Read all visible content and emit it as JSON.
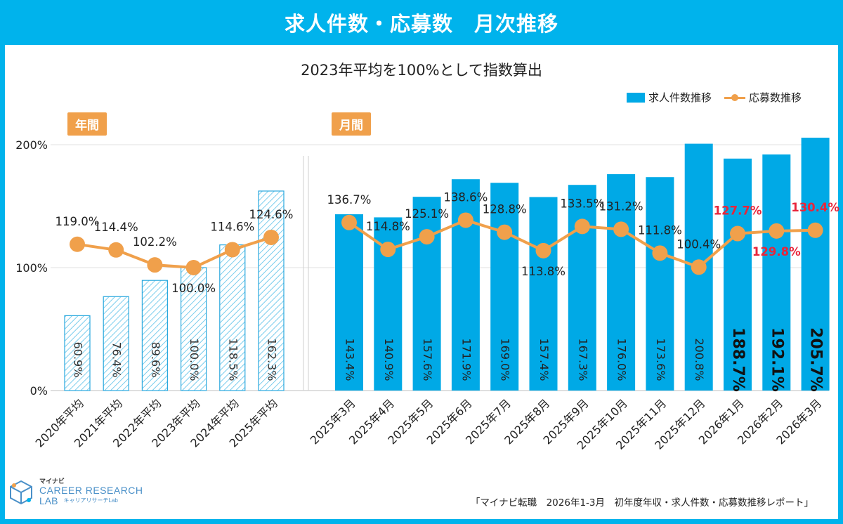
{
  "header": {
    "title": "求人件数・応募数　月次推移"
  },
  "subtitle": "2023年平均を100%として指数算出",
  "legend": {
    "bar_label": "求人件数推移",
    "line_label": "応募数推移"
  },
  "sections": {
    "annual": "年間",
    "monthly": "月間"
  },
  "colors": {
    "bar": "#00a9e6",
    "line": "#f0a04b",
    "highlight_label": "#e8253a",
    "header": "#00b3ec"
  },
  "chart_data": {
    "type": "bar+line",
    "yaxis": {
      "ticks": [
        "0%",
        "100%",
        "200%"
      ],
      "tick_values": [
        0,
        100,
        200
      ],
      "ylim": [
        0,
        200
      ]
    },
    "annual": {
      "categories": [
        "2020年平均",
        "2021年平均",
        "2022年平均",
        "2023年平均",
        "2024年平均",
        "2025年平均"
      ],
      "bar_values": [
        60.9,
        76.4,
        89.6,
        100.0,
        118.5,
        162.3
      ],
      "bar_labels": [
        "60.9%",
        "76.4%",
        "89.6%",
        "100.0%",
        "118.5%",
        "162.3%"
      ],
      "line_values": [
        119.0,
        114.4,
        102.2,
        100.0,
        114.6,
        124.6
      ],
      "line_labels": [
        "119.0%",
        "114.4%",
        "102.2%",
        "100.0%",
        "114.6%",
        "124.6%"
      ]
    },
    "monthly": {
      "categories": [
        "2025年3月",
        "2025年4月",
        "2025年5月",
        "2025年6月",
        "2025年7月",
        "2025年8月",
        "2025年9月",
        "2025年10月",
        "2025年11月",
        "2025年12月",
        "2026年1月",
        "2026年2月",
        "2026年3月"
      ],
      "bar_values": [
        143.4,
        140.9,
        157.6,
        171.9,
        169.0,
        157.4,
        167.3,
        176.0,
        173.6,
        200.8,
        188.7,
        192.1,
        205.7
      ],
      "bar_labels": [
        "143.4%",
        "140.9%",
        "157.6%",
        "171.9%",
        "169.0%",
        "157.4%",
        "167.3%",
        "176.0%",
        "173.6%",
        "200.8%",
        "188.7%",
        "192.1%",
        "205.7%"
      ],
      "bar_label_emphasis": [
        false,
        false,
        false,
        false,
        false,
        false,
        false,
        false,
        false,
        false,
        true,
        true,
        true
      ],
      "line_values": [
        136.7,
        114.8,
        125.1,
        138.6,
        128.8,
        113.8,
        133.5,
        131.2,
        111.8,
        100.4,
        127.7,
        129.8,
        130.4
      ],
      "line_labels": [
        "136.7%",
        "114.8%",
        "125.1%",
        "138.6%",
        "128.8%",
        "113.8%",
        "133.5%",
        "131.2%",
        "111.8%",
        "100.4%",
        "127.7%",
        "129.8%",
        "130.4%"
      ],
      "line_label_emphasis": [
        false,
        false,
        false,
        false,
        false,
        false,
        false,
        false,
        false,
        false,
        true,
        true,
        true
      ]
    }
  },
  "logo": {
    "brand": "マイナビ",
    "line1": "CAREER RESEARCH",
    "line2": "LAB",
    "sub": "キャリアリサーチLab"
  },
  "source": "「マイナビ転職　2026年1-3月　初年度年収・求人件数・応募数推移レポート」"
}
